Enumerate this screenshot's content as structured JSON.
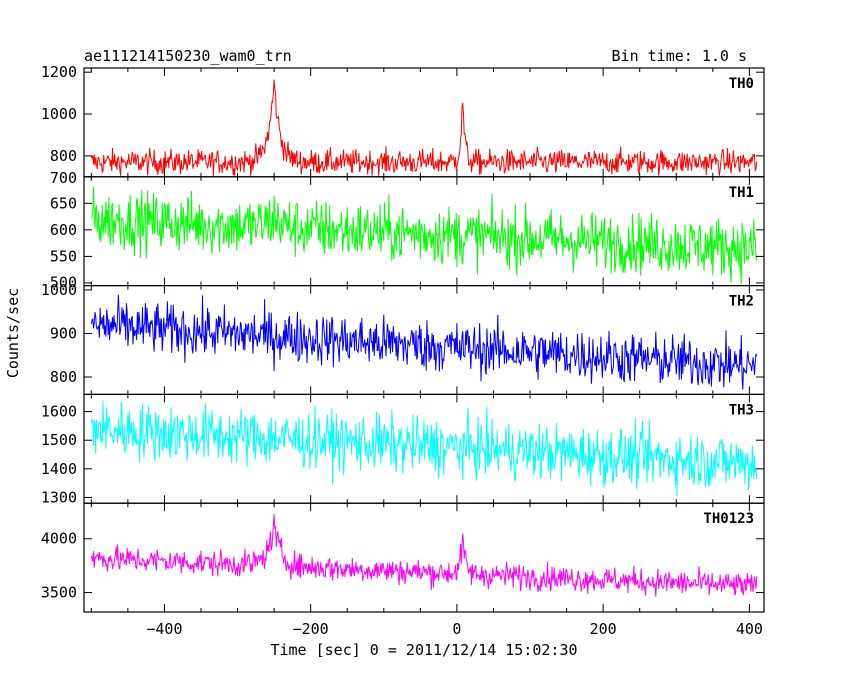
{
  "header": {
    "title": "ae111214150230_wam0_trn",
    "bin_time": "Bin time: 1.0 s"
  },
  "axes": {
    "ylabel": "Counts/sec",
    "xlabel": "Time [sec] 0 = 2011/12/14 15:02:30"
  },
  "chart_data": {
    "type": "line",
    "x_range": [
      -510,
      420
    ],
    "x_ticks": [
      -400,
      -200,
      0,
      200,
      400
    ],
    "x_tick_labels": [
      "−400",
      "−200",
      "0",
      "200",
      "400"
    ],
    "x_data_range": [
      -500,
      410
    ],
    "bin_time_s": 1.0,
    "panels": [
      {
        "name": "TH0",
        "color": "#ff0000",
        "ylim": [
          700,
          1220
        ],
        "yticks": [
          800,
          1000,
          1200
        ],
        "ytick_labels": [
          "800",
          "1000",
          "1200"
        ],
        "baseline": 770,
        "trend": [
          770,
          770
        ],
        "noise": 30,
        "peaks": [
          {
            "t": -250,
            "amp": 380,
            "width": 8
          },
          {
            "t": 8,
            "amp": 300,
            "width": 3
          }
        ]
      },
      {
        "name": "TH1",
        "color": "#00ff00",
        "ylim": [
          495,
          700
        ],
        "yticks": [
          500,
          550,
          600,
          650,
          700
        ],
        "ytick_labels": [
          "500",
          "550",
          "600",
          "650",
          "700"
        ],
        "baseline": 620,
        "trend": [
          620,
          565
        ],
        "noise": 28,
        "peaks": [
          {
            "t": -250,
            "amp": 20,
            "width": 10
          }
        ]
      },
      {
        "name": "TH2",
        "color": "#0000ff",
        "ylim": [
          760,
          1010
        ],
        "yticks": [
          800,
          900,
          1000
        ],
        "ytick_labels": [
          "800",
          "900",
          "1000"
        ],
        "baseline": 920,
        "trend": [
          920,
          825
        ],
        "noise": 30,
        "peaks": []
      },
      {
        "name": "TH3",
        "color": "#00ffff",
        "ylim": [
          1280,
          1660
        ],
        "yticks": [
          1300,
          1400,
          1500,
          1600
        ],
        "ytick_labels": [
          "1300",
          "1400",
          "1500",
          "1600"
        ],
        "baseline": 1540,
        "trend": [
          1540,
          1420
        ],
        "noise": 50,
        "peaks": []
      },
      {
        "name": "TH0123",
        "color": "#ff00ff",
        "ylim": [
          3320,
          4330
        ],
        "yticks": [
          3500,
          4000
        ],
        "ytick_labels": [
          "3500",
          "4000"
        ],
        "baseline": 3820,
        "trend": [
          3820,
          3560
        ],
        "noise": 60,
        "peaks": [
          {
            "t": -250,
            "amp": 380,
            "width": 9
          },
          {
            "t": 8,
            "amp": 300,
            "width": 4
          }
        ]
      }
    ]
  }
}
